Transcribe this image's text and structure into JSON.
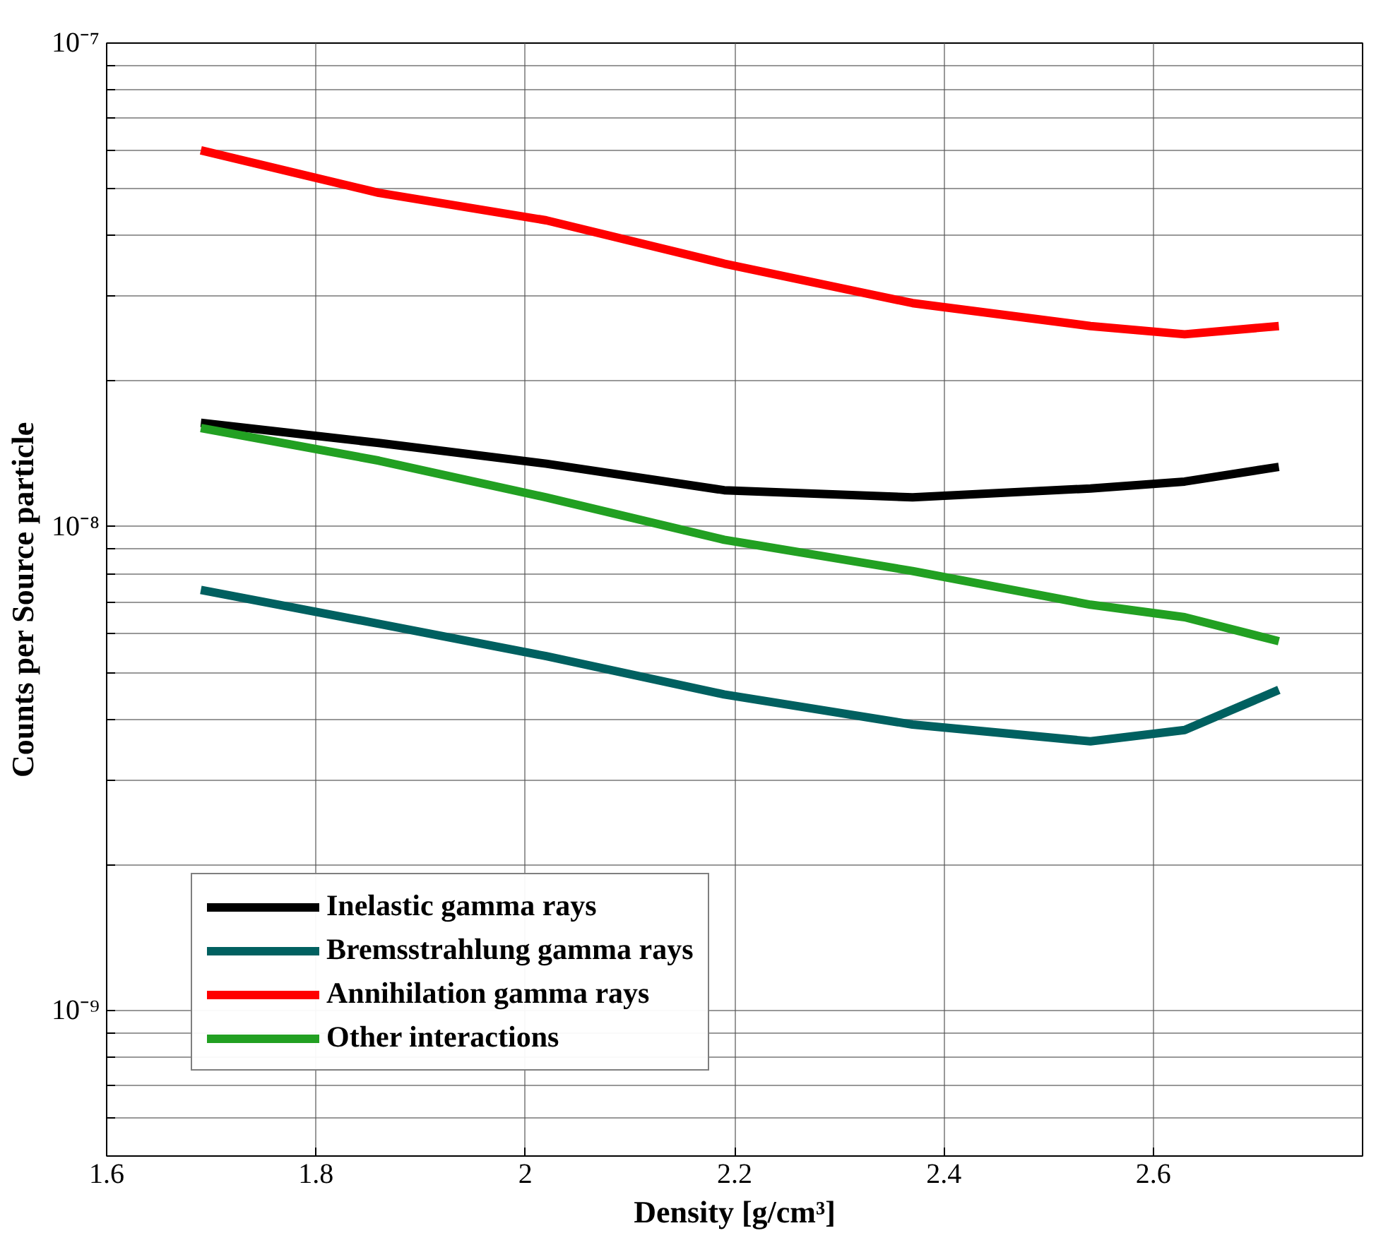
{
  "chart_data": {
    "type": "line",
    "xlabel": "Density [g/cm³]",
    "ylabel": "Counts per Source particle",
    "x": [
      1.69,
      1.86,
      2.02,
      2.19,
      2.37,
      2.54,
      2.63,
      2.72
    ],
    "series": [
      {
        "name": "Inelastic gamma rays",
        "color": "#000000",
        "values": [
          1.64e-08,
          1.49e-08,
          1.35e-08,
          1.19e-08,
          1.15e-08,
          1.2e-08,
          1.24e-08,
          1.33e-08
        ]
      },
      {
        "name": "Bremsstrahlung gamma rays",
        "color": "#006060",
        "values": [
          7.4e-09,
          6.3e-09,
          5.4e-09,
          4.5e-09,
          3.9e-09,
          3.6e-09,
          3.8e-09,
          4.6e-09
        ]
      },
      {
        "name": "Annihilation gamma rays",
        "color": "#ff0000",
        "values": [
          6e-08,
          4.9e-08,
          4.3e-08,
          3.5e-08,
          2.9e-08,
          2.6e-08,
          2.5e-08,
          2.6e-08
        ]
      },
      {
        "name": "Other interactions",
        "color": "#22a022",
        "values": [
          1.6e-08,
          1.37e-08,
          1.15e-08,
          9.4e-09,
          8.1e-09,
          6.9e-09,
          6.5e-09,
          5.8e-09
        ]
      }
    ],
    "xlim": [
      1.6,
      2.8
    ],
    "xticks": [
      1.6,
      1.8,
      2,
      2.2,
      2.4,
      2.6
    ],
    "ylim": [
      5e-10,
      1e-07
    ],
    "yticks": [
      {
        "value": 5e-10,
        "label": null
      },
      {
        "value": 6e-10,
        "label": null
      },
      {
        "value": 7e-10,
        "label": null
      },
      {
        "value": 8e-10,
        "label": null
      },
      {
        "value": 9e-10,
        "label": null
      },
      {
        "value": 1e-09,
        "label": "10⁻⁹"
      },
      {
        "value": 2e-09,
        "label": null
      },
      {
        "value": 3e-09,
        "label": null
      },
      {
        "value": 4e-09,
        "label": null
      },
      {
        "value": 5e-09,
        "label": null
      },
      {
        "value": 6e-09,
        "label": null
      },
      {
        "value": 7e-09,
        "label": null
      },
      {
        "value": 8e-09,
        "label": null
      },
      {
        "value": 9e-09,
        "label": null
      },
      {
        "value": 1e-08,
        "label": "10⁻⁸"
      },
      {
        "value": 2e-08,
        "label": null
      },
      {
        "value": 3e-08,
        "label": null
      },
      {
        "value": 4e-08,
        "label": null
      },
      {
        "value": 5e-08,
        "label": null
      },
      {
        "value": 6e-08,
        "label": null
      },
      {
        "value": 7e-08,
        "label": null
      },
      {
        "value": 8e-08,
        "label": null
      },
      {
        "value": 9e-08,
        "label": null
      },
      {
        "value": 1e-07,
        "label": "10⁻⁷"
      }
    ],
    "log": "y",
    "grid": true,
    "legend": "bottom left",
    "marker": "none",
    "line_style": "solid"
  }
}
